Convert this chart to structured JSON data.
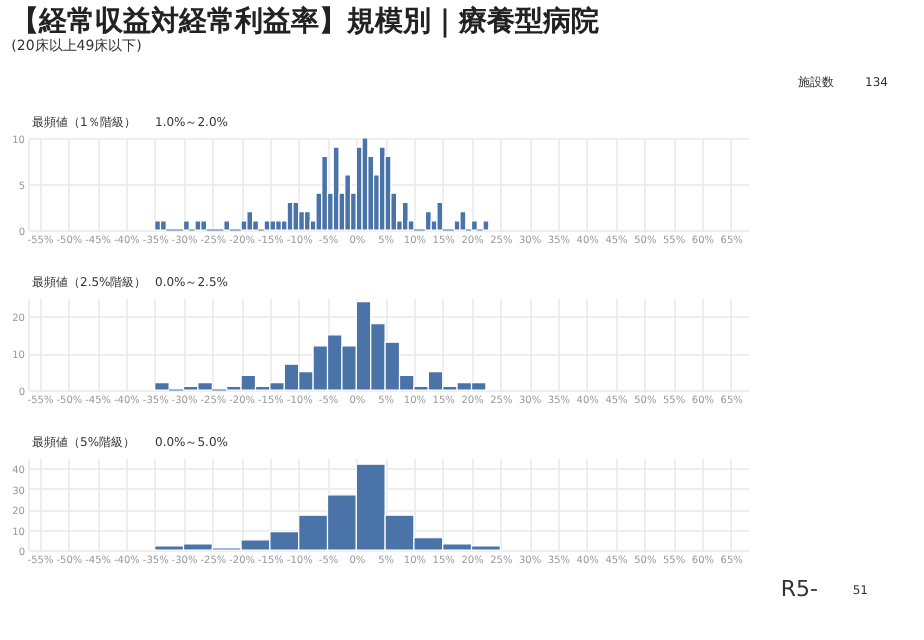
{
  "chart_data": [
    {
      "type": "histogram",
      "title": "【経常収益対経常利益率】規模別｜療養型病院",
      "subtitle": "(20床以上49床以下)",
      "annotations": [
        "最頻値（1％階級）",
        "1.0%～2.0%",
        "施設数",
        "134"
      ],
      "bins": [
        -35,
        -34,
        -33,
        -32,
        -31,
        -30,
        -29,
        -28,
        -27,
        -26,
        -25,
        -24,
        -23,
        -22,
        -21,
        -20,
        -19,
        -18,
        -17,
        -16,
        -15,
        -14,
        -13,
        -12,
        -11,
        -10,
        -9,
        -8,
        -7,
        -6,
        -5,
        -4,
        -3,
        -2,
        -1,
        0,
        1,
        2,
        3,
        4,
        5,
        6,
        7,
        8,
        9,
        10,
        11,
        12,
        13,
        14,
        15,
        16,
        17,
        18,
        19,
        20,
        21,
        22,
        23
      ],
      "values": [
        1,
        1,
        0,
        0,
        0,
        1,
        0,
        1,
        1,
        0,
        0,
        0,
        1,
        0,
        0,
        1,
        2,
        1,
        0,
        1,
        1,
        1,
        1,
        3,
        3,
        2,
        2,
        1,
        4,
        8,
        4,
        9,
        4,
        6,
        4,
        9,
        10,
        8,
        6,
        9,
        8,
        4,
        1,
        3,
        1,
        0,
        0,
        2,
        1,
        3,
        0,
        0,
        1,
        2,
        0,
        1,
        0,
        1
      ],
      "color": "#4a74a8",
      "xlim": [
        -57,
        68
      ],
      "xticks": [
        {
          "value": -55,
          "label": "-55%"
        },
        {
          "value": -50,
          "label": "-50%"
        },
        {
          "value": -45,
          "label": "-45%"
        },
        {
          "value": -40,
          "label": "-40%"
        },
        {
          "value": -35,
          "label": "-35%"
        },
        {
          "value": -30,
          "label": "-30%"
        },
        {
          "value": -25,
          "label": "-25%"
        },
        {
          "value": -20,
          "label": "-20%"
        },
        {
          "value": -15,
          "label": "-15%"
        },
        {
          "value": -10,
          "label": "-10%"
        },
        {
          "value": -5,
          "label": "-5%"
        },
        {
          "value": 0,
          "label": "0%"
        },
        {
          "value": 5,
          "label": "5%"
        },
        {
          "value": 10,
          "label": "10%"
        },
        {
          "value": 15,
          "label": "15%"
        },
        {
          "value": 20,
          "label": "20%"
        },
        {
          "value": 25,
          "label": "25%"
        },
        {
          "value": 30,
          "label": "30%"
        },
        {
          "value": 35,
          "label": "35%"
        },
        {
          "value": 40,
          "label": "40%"
        },
        {
          "value": 45,
          "label": "45%"
        },
        {
          "value": 50,
          "label": "50%"
        },
        {
          "value": 55,
          "label": "55%"
        },
        {
          "value": 60,
          "label": "60%"
        },
        {
          "value": 65,
          "label": "65%"
        }
      ],
      "ylim": [
        0,
        10
      ],
      "yticks": [
        0,
        5,
        10
      ],
      "grid": true
    },
    {
      "type": "histogram",
      "annotations": [
        "最頻値（2.5%階級）",
        "0.0%～2.5%"
      ],
      "bins": [
        -35,
        -32.5,
        -30,
        -27.5,
        -25,
        -22.5,
        -20,
        -17.5,
        -15,
        -12.5,
        -10,
        -7.5,
        -5,
        -2.5,
        0,
        2.5,
        5,
        7.5,
        10,
        12.5,
        15,
        17.5,
        20,
        22.5
      ],
      "values": [
        2,
        0,
        1,
        2,
        0,
        1,
        4,
        1,
        2,
        7,
        5,
        12,
        15,
        12,
        24,
        18,
        13,
        4,
        1,
        5,
        1,
        2,
        2
      ],
      "color": "#4a74a8",
      "xlim": [
        -57,
        68
      ],
      "xticks": [
        {
          "value": -55,
          "label": "-55%"
        },
        {
          "value": -50,
          "label": "-50%"
        },
        {
          "value": -45,
          "label": "-45%"
        },
        {
          "value": -40,
          "label": "-40%"
        },
        {
          "value": -35,
          "label": "-35%"
        },
        {
          "value": -30,
          "label": "-30%"
        },
        {
          "value": -25,
          "label": "-25%"
        },
        {
          "value": -20,
          "label": "-20%"
        },
        {
          "value": -15,
          "label": "-15%"
        },
        {
          "value": -10,
          "label": "-10%"
        },
        {
          "value": -5,
          "label": "-5%"
        },
        {
          "value": 0,
          "label": "0%"
        },
        {
          "value": 5,
          "label": "5%"
        },
        {
          "value": 10,
          "label": "10%"
        },
        {
          "value": 15,
          "label": "15%"
        },
        {
          "value": 20,
          "label": "20%"
        },
        {
          "value": 25,
          "label": "25%"
        },
        {
          "value": 30,
          "label": "30%"
        },
        {
          "value": 35,
          "label": "35%"
        },
        {
          "value": 40,
          "label": "40%"
        },
        {
          "value": 45,
          "label": "45%"
        },
        {
          "value": 50,
          "label": "50%"
        },
        {
          "value": 55,
          "label": "55%"
        },
        {
          "value": 60,
          "label": "60%"
        },
        {
          "value": 65,
          "label": "65%"
        }
      ],
      "ylim": [
        0,
        25
      ],
      "yticks": [
        0,
        10,
        20
      ],
      "grid": true
    },
    {
      "type": "histogram",
      "annotations": [
        "最頻値（5%階級）",
        "0.0%～5.0%",
        "R5-",
        "51"
      ],
      "bins": [
        -35,
        -30,
        -25,
        -20,
        -15,
        -10,
        -5,
        0,
        5,
        10,
        15,
        20,
        25
      ],
      "values": [
        2,
        3,
        1,
        5,
        9,
        17,
        27,
        42,
        17,
        6,
        3,
        2
      ],
      "color": "#4a74a8",
      "xlim": [
        -57,
        68
      ],
      "xticks": [
        {
          "value": -55,
          "label": "-55%"
        },
        {
          "value": -50,
          "label": "-50%"
        },
        {
          "value": -45,
          "label": "-45%"
        },
        {
          "value": -40,
          "label": "-40%"
        },
        {
          "value": -35,
          "label": "-35%"
        },
        {
          "value": -30,
          "label": "-30%"
        },
        {
          "value": -25,
          "label": "-25%"
        },
        {
          "value": -20,
          "label": "-20%"
        },
        {
          "value": -15,
          "label": "-15%"
        },
        {
          "value": -10,
          "label": "-10%"
        },
        {
          "value": -5,
          "label": "-5%"
        },
        {
          "value": 0,
          "label": "0%"
        },
        {
          "value": 5,
          "label": "5%"
        },
        {
          "value": 10,
          "label": "10%"
        },
        {
          "value": 15,
          "label": "15%"
        },
        {
          "value": 20,
          "label": "20%"
        },
        {
          "value": 25,
          "label": "25%"
        },
        {
          "value": 30,
          "label": "30%"
        },
        {
          "value": 35,
          "label": "35%"
        },
        {
          "value": 40,
          "label": "40%"
        },
        {
          "value": 45,
          "label": "45%"
        },
        {
          "value": 50,
          "label": "50%"
        },
        {
          "value": 55,
          "label": "55%"
        },
        {
          "value": 60,
          "label": "60%"
        },
        {
          "value": 65,
          "label": "65%"
        }
      ],
      "ylim": [
        0,
        45
      ],
      "yticks": [
        0,
        10,
        20,
        30,
        40
      ],
      "grid": true
    }
  ]
}
